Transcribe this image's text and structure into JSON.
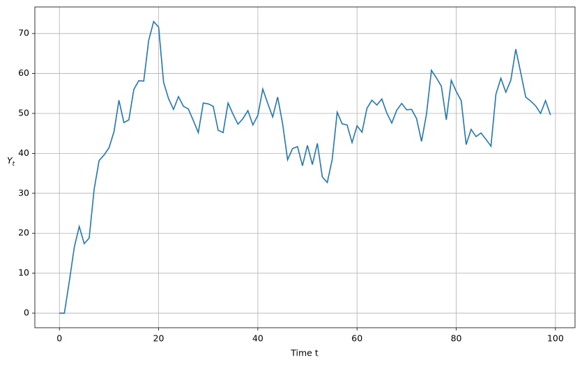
{
  "chart_data": {
    "type": "line",
    "xlabel": "Time t",
    "ylabel": "Y",
    "ylabel_subscript": "t",
    "x": [
      0,
      1,
      2,
      3,
      4,
      5,
      6,
      7,
      8,
      9,
      10,
      11,
      12,
      13,
      14,
      15,
      16,
      17,
      18,
      19,
      20,
      21,
      22,
      23,
      24,
      25,
      26,
      27,
      28,
      29,
      30,
      31,
      32,
      33,
      34,
      35,
      36,
      37,
      38,
      39,
      40,
      41,
      42,
      43,
      44,
      45,
      46,
      47,
      48,
      49,
      50,
      51,
      52,
      53,
      54,
      55,
      56,
      57,
      58,
      59,
      60,
      61,
      62,
      63,
      64,
      65,
      66,
      67,
      68,
      69,
      70,
      71,
      72,
      73,
      74,
      75,
      76,
      77,
      78,
      79,
      80,
      81,
      82,
      83,
      84,
      85,
      86,
      87,
      88,
      89,
      90,
      91,
      92,
      93,
      94,
      95,
      96,
      97,
      98,
      99
    ],
    "series": [
      {
        "name": "Y",
        "color": "#1f77b4",
        "values": [
          0,
          0,
          8,
          16.5,
          21.7,
          17.4,
          18.8,
          31,
          38.2,
          39.6,
          41.4,
          45.4,
          53.3,
          47.7,
          48.4,
          56,
          58.2,
          58.1,
          68.3,
          73,
          71.6,
          57.8,
          53.7,
          51,
          54.2,
          51.8,
          51.1,
          48.2,
          45.2,
          52.6,
          52.4,
          51.8,
          45.8,
          45.2,
          52.6,
          49.8,
          47.3,
          48.7,
          50.7,
          47.1,
          49.5,
          56.1,
          52.5,
          49.1,
          54.1,
          47.4,
          38.4,
          41.2,
          41.7,
          36.9,
          42,
          37.2,
          42.5,
          34.1,
          32.7,
          38.5,
          50.3,
          47.4,
          47.1,
          42.7,
          46.9,
          45.3,
          51.3,
          53.3,
          52.1,
          53.6,
          50.1,
          47.6,
          50.8,
          52.5,
          50.9,
          51,
          48.7,
          43,
          49.8,
          60.8,
          58.9,
          56.8,
          48.4,
          58.3,
          55.5,
          53.2,
          42.2,
          46,
          44.2,
          45.1,
          43.5,
          41.8,
          54.8,
          58.8,
          55.3,
          58.3,
          66.1,
          60.2,
          54.1,
          53.1,
          51.9,
          50,
          53.2,
          49.6
        ]
      }
    ],
    "xlim": [
      -4.95,
      103.95
    ],
    "ylim": [
      -3.65,
      76.65
    ],
    "xticks": [
      0,
      20,
      40,
      60,
      80,
      100
    ],
    "yticks": [
      0,
      10,
      20,
      30,
      40,
      50,
      60,
      70
    ],
    "grid": true
  }
}
